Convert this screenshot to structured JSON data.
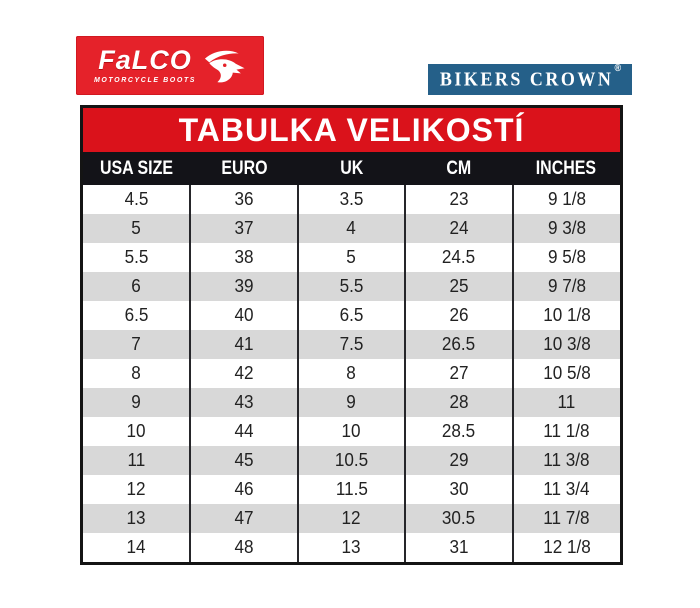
{
  "logos": {
    "falco": {
      "brand": "FaLCO",
      "tagline": "MOTORCYCLE BOOTS",
      "bg_color": "#e5222a",
      "icon": "falcon-head-icon"
    },
    "bikers_crown": {
      "brand": "BIKERS CROWN",
      "registered_mark": "®",
      "bg_color": "#256089"
    }
  },
  "chart_data": {
    "type": "table",
    "title": "TABULKA VELIKOSTÍ",
    "columns": [
      "USA SIZE",
      "EURO",
      "UK",
      "CM",
      "INCHES"
    ],
    "rows": [
      [
        "4.5",
        "36",
        "3.5",
        "23",
        "9 1/8"
      ],
      [
        "5",
        "37",
        "4",
        "24",
        "9 3/8"
      ],
      [
        "5.5",
        "38",
        "5",
        "24.5",
        "9 5/8"
      ],
      [
        "6",
        "39",
        "5.5",
        "25",
        "9 7/8"
      ],
      [
        "6.5",
        "40",
        "6.5",
        "26",
        "10 1/8"
      ],
      [
        "7",
        "41",
        "7.5",
        "26.5",
        "10 3/8"
      ],
      [
        "8",
        "42",
        "8",
        "27",
        "10 5/8"
      ],
      [
        "9",
        "43",
        "9",
        "28",
        "11"
      ],
      [
        "10",
        "44",
        "10",
        "28.5",
        "11 1/8"
      ],
      [
        "11",
        "45",
        "10.5",
        "29",
        "11 3/8"
      ],
      [
        "12",
        "46",
        "11.5",
        "30",
        "11 3/4"
      ],
      [
        "13",
        "47",
        "12",
        "30.5",
        "11 7/8"
      ],
      [
        "14",
        "48",
        "13",
        "31",
        "12 1/8"
      ]
    ],
    "style": {
      "title_bg": "#da121b",
      "header_bg": "#131318",
      "header_text": "#ffffff",
      "row_bg": "#ffffff",
      "row_alt_bg": "#d8d8d8",
      "border_color": "#141414",
      "cell_text": "#222222"
    },
    "layout": {
      "legend": "none",
      "grid": "column-dividers-only",
      "row_striping": "alternating"
    }
  }
}
